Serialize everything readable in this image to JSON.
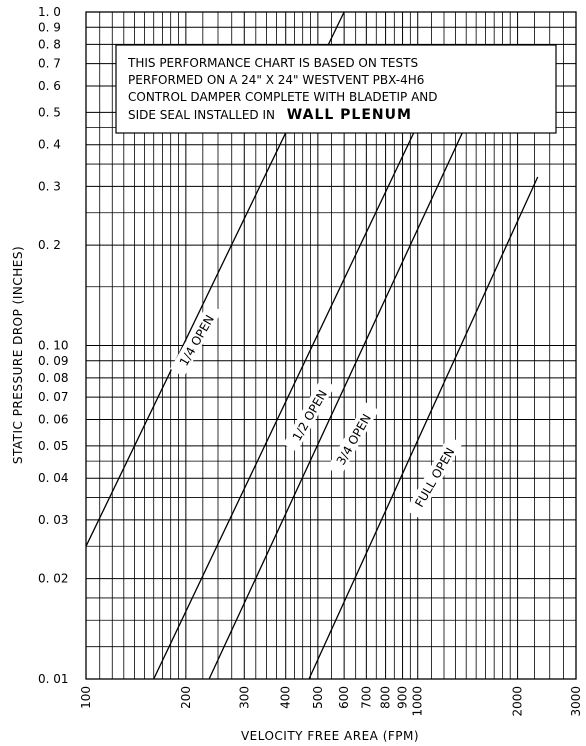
{
  "chart_data": {
    "type": "line",
    "xscale": "log",
    "yscale": "log",
    "xlim": [
      100,
      3000
    ],
    "ylim": [
      0.01,
      1.0
    ],
    "grid": true,
    "xlabel": "VELOCITY FREE AREA (FPM)",
    "ylabel": "STATIC PRESSURE DROP (INCHES)",
    "x_ticks": [
      {
        "value": 100,
        "label": "100"
      },
      {
        "value": 200,
        "label": "200"
      },
      {
        "value": 300,
        "label": "300"
      },
      {
        "value": 400,
        "label": "400"
      },
      {
        "value": 500,
        "label": "500"
      },
      {
        "value": 600,
        "label": "600"
      },
      {
        "value": 700,
        "label": "700"
      },
      {
        "value": 800,
        "label": "800"
      },
      {
        "value": 900,
        "label": "900"
      },
      {
        "value": 1000,
        "label": "1000"
      },
      {
        "value": 2000,
        "label": "2000"
      },
      {
        "value": 3000,
        "label": "3000"
      }
    ],
    "y_ticks": [
      {
        "value": 0.01,
        "label": "0. 01"
      },
      {
        "value": 0.02,
        "label": "0. 02"
      },
      {
        "value": 0.03,
        "label": "0. 03"
      },
      {
        "value": 0.04,
        "label": "0. 04"
      },
      {
        "value": 0.05,
        "label": "0. 05"
      },
      {
        "value": 0.06,
        "label": "0. 06"
      },
      {
        "value": 0.07,
        "label": "0. 07"
      },
      {
        "value": 0.08,
        "label": "0. 08"
      },
      {
        "value": 0.09,
        "label": "0. 09"
      },
      {
        "value": 0.1,
        "label": "0. 10"
      },
      {
        "value": 0.2,
        "label": "0. 2"
      },
      {
        "value": 0.3,
        "label": "0. 3"
      },
      {
        "value": 0.4,
        "label": "0. 4"
      },
      {
        "value": 0.5,
        "label": "0. 5"
      },
      {
        "value": 0.6,
        "label": "0. 6"
      },
      {
        "value": 0.7,
        "label": "0. 7"
      },
      {
        "value": 0.8,
        "label": "0. 8"
      },
      {
        "value": 0.9,
        "label": "0. 9"
      },
      {
        "value": 1.0,
        "label": "1. 0"
      }
    ],
    "x_minor_grid": [
      110,
      120,
      130,
      140,
      150,
      160,
      170,
      180,
      190,
      225,
      250,
      275,
      325,
      350,
      375,
      425,
      450,
      475,
      550,
      650,
      750,
      850,
      950,
      1100,
      1200,
      1300,
      1400,
      1500,
      1600,
      1700,
      1800,
      1900,
      2250,
      2500,
      2750
    ],
    "y_minor_grid": [
      0.0125,
      0.015,
      0.0175,
      0.025,
      0.035,
      0.045,
      0.15,
      0.25,
      0.35,
      0.45
    ],
    "series": [
      {
        "name": "1/4 OPEN",
        "points": [
          [
            100,
            0.025
          ],
          [
            600,
            1.0
          ]
        ]
      },
      {
        "name": "1/2 OPEN",
        "points": [
          [
            160,
            0.01
          ],
          [
            1000,
            0.46
          ]
        ]
      },
      {
        "name": "3/4 OPEN",
        "points": [
          [
            235,
            0.01
          ],
          [
            1400,
            0.46
          ]
        ]
      },
      {
        "name": "FULL OPEN",
        "points": [
          [
            470,
            0.01
          ],
          [
            2300,
            0.32
          ]
        ]
      }
    ]
  },
  "note": {
    "lines": [
      "THIS PERFORMANCE CHART IS BASED ON TESTS",
      "PERFORMED ON A 24\" X 24\" WESTVENT PBX-4H6",
      "CONTROL DAMPER COMPLETE WITH BLADETIP AND"
    ],
    "last_line": "SIDE SEAL INSTALLED IN",
    "emphasis": "WALL PLENUM"
  },
  "curve_labels": {
    "quarter": "1/4 OPEN",
    "half": "1/2 OPEN",
    "three_quarter": "3/4 OPEN",
    "full": "FULL OPEN"
  }
}
